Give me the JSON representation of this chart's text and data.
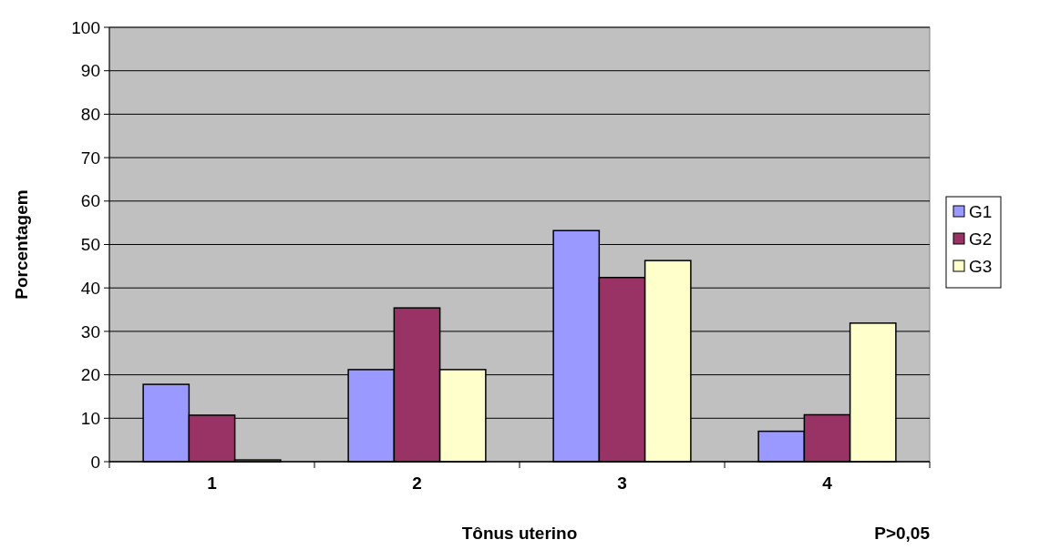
{
  "chart_data": {
    "type": "bar",
    "xlabel": "Tônus uterino",
    "ylabel": "Porcentagem",
    "categories": [
      "1",
      "2",
      "3",
      "4"
    ],
    "series": [
      {
        "name": "G1",
        "color": "#9999ff",
        "values": [
          17.8,
          21.2,
          53.2,
          7.0
        ]
      },
      {
        "name": "G2",
        "color": "#993366",
        "values": [
          10.7,
          35.4,
          42.4,
          10.8
        ]
      },
      {
        "name": "G3",
        "color": "#ffffcc",
        "values": [
          0.4,
          21.2,
          46.3,
          31.9
        ]
      }
    ],
    "ylim": [
      0,
      100
    ],
    "yticks": [
      0,
      10,
      20,
      30,
      40,
      50,
      60,
      70,
      80,
      90,
      100
    ],
    "grid": "y",
    "legend": "right",
    "annotations": [
      "P>0,05"
    ]
  }
}
